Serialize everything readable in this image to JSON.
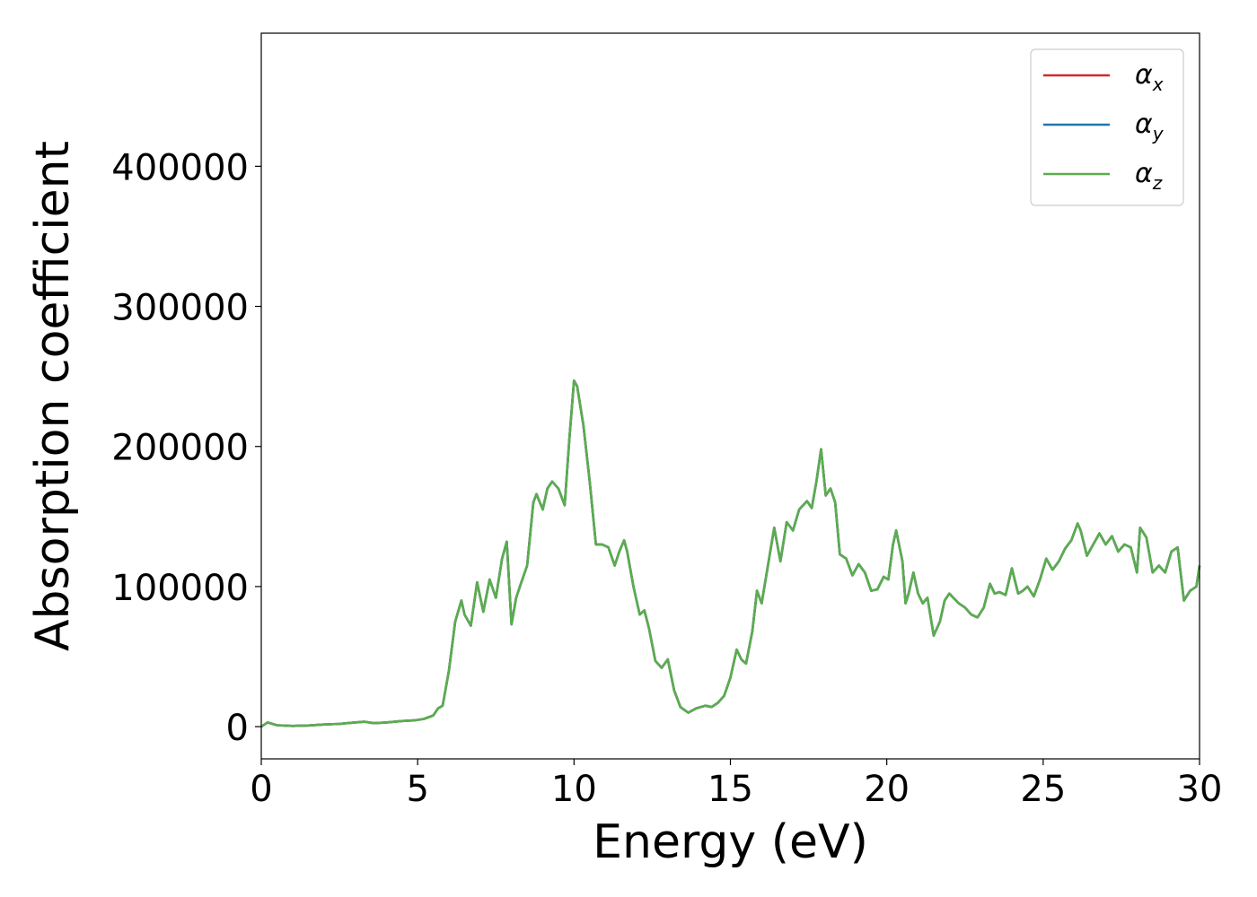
{
  "chart_data": {
    "type": "line",
    "title": "",
    "xlabel": "Energy (eV)",
    "ylabel": "Absorption coefficient",
    "xlim": [
      0,
      30
    ],
    "ylim": [
      -23000,
      495000
    ],
    "xticks": [
      0,
      5,
      10,
      15,
      20,
      25,
      30
    ],
    "xtick_labels": [
      "0",
      "5",
      "10",
      "15",
      "20",
      "25",
      "30"
    ],
    "yticks": [
      0,
      100000,
      200000,
      300000,
      400000
    ],
    "ytick_labels": [
      "0",
      "100000",
      "200000",
      "300000",
      "400000"
    ],
    "grid": false,
    "legend_position": "top-right",
    "x": [
      0,
      0.2,
      0.5,
      1,
      1.5,
      2,
      2.5,
      3,
      3.3,
      3.6,
      4,
      4.5,
      4.9,
      5.2,
      5.5,
      5.65,
      5.8,
      6.0,
      6.2,
      6.4,
      6.5,
      6.7,
      6.9,
      7.1,
      7.3,
      7.5,
      7.7,
      7.85,
      8.0,
      8.15,
      8.3,
      8.5,
      8.7,
      8.8,
      9.0,
      9.15,
      9.3,
      9.5,
      9.7,
      9.85,
      10.0,
      10.1,
      10.3,
      10.5,
      10.7,
      10.9,
      11.1,
      11.3,
      11.45,
      11.6,
      11.7,
      11.9,
      12.1,
      12.25,
      12.4,
      12.6,
      12.8,
      13.0,
      13.2,
      13.4,
      13.65,
      13.9,
      14.2,
      14.4,
      14.6,
      14.8,
      15.0,
      15.2,
      15.35,
      15.5,
      15.7,
      15.85,
      16.0,
      16.2,
      16.4,
      16.6,
      16.8,
      17.0,
      17.2,
      17.45,
      17.6,
      17.75,
      17.9,
      18.05,
      18.2,
      18.35,
      18.5,
      18.7,
      18.9,
      19.1,
      19.3,
      19.5,
      19.7,
      19.9,
      20.05,
      20.2,
      20.3,
      20.5,
      20.6,
      20.7,
      20.85,
      21.0,
      21.15,
      21.3,
      21.5,
      21.7,
      21.85,
      22.0,
      22.3,
      22.5,
      22.7,
      22.9,
      23.1,
      23.3,
      23.45,
      23.6,
      23.8,
      24.0,
      24.2,
      24.35,
      24.5,
      24.7,
      24.9,
      25.1,
      25.3,
      25.5,
      25.7,
      25.9,
      26.1,
      26.2,
      26.4,
      26.6,
      26.8,
      27.0,
      27.2,
      27.4,
      27.6,
      27.8,
      28.0,
      28.1,
      28.3,
      28.5,
      28.7,
      28.9,
      29.1,
      29.3,
      29.5,
      29.7,
      29.9,
      30.0
    ],
    "series": [
      {
        "name": "α_x",
        "color": "#d62728",
        "values": [
          0,
          3000,
          1000,
          500,
          800,
          1500,
          2000,
          3000,
          3500,
          2500,
          3000,
          4000,
          4500,
          5500,
          8000,
          13000,
          15000,
          40000,
          75000,
          90000,
          80000,
          72000,
          103000,
          82000,
          105000,
          92000,
          120000,
          132000,
          73000,
          92000,
          102000,
          115000,
          160000,
          166000,
          155000,
          170000,
          175000,
          170000,
          158000,
          205000,
          247000,
          243000,
          215000,
          175000,
          130000,
          130000,
          128000,
          115000,
          125000,
          133000,
          125000,
          100000,
          80000,
          83000,
          70000,
          47000,
          42000,
          48000,
          26000,
          14000,
          10000,
          13000,
          15000,
          14000,
          17000,
          22000,
          35000,
          55000,
          48000,
          45000,
          68000,
          97000,
          88000,
          115000,
          142000,
          118000,
          146000,
          140000,
          155000,
          161000,
          156000,
          175000,
          198000,
          165000,
          170000,
          160000,
          123000,
          120000,
          108000,
          116000,
          110000,
          97000,
          98000,
          107000,
          105000,
          130000,
          140000,
          118000,
          88000,
          95000,
          110000,
          95000,
          88000,
          92000,
          65000,
          75000,
          90000,
          95000,
          88000,
          85000,
          80000,
          78000,
          85000,
          102000,
          95000,
          96000,
          94000,
          113000,
          95000,
          97000,
          100000,
          93000,
          105000,
          120000,
          112000,
          118000,
          127000,
          133000,
          145000,
          140000,
          122000,
          130000,
          138000,
          130000,
          136000,
          125000,
          130000,
          128000,
          110000,
          142000,
          135000,
          110000,
          115000,
          110000,
          125000,
          128000,
          90000,
          97000,
          100000,
          115000
        ]
      },
      {
        "name": "α_y",
        "color": "#1f77b4",
        "values": [
          0,
          3000,
          1000,
          500,
          800,
          1500,
          2000,
          3000,
          3500,
          2500,
          3000,
          4000,
          4500,
          5500,
          8000,
          13000,
          15000,
          40000,
          75000,
          90000,
          80000,
          72000,
          103000,
          82000,
          105000,
          92000,
          120000,
          132000,
          73000,
          92000,
          102000,
          115000,
          160000,
          166000,
          155000,
          170000,
          175000,
          170000,
          158000,
          205000,
          247000,
          243000,
          215000,
          175000,
          130000,
          130000,
          128000,
          115000,
          125000,
          133000,
          125000,
          100000,
          80000,
          83000,
          70000,
          47000,
          42000,
          48000,
          26000,
          14000,
          10000,
          13000,
          15000,
          14000,
          17000,
          22000,
          35000,
          55000,
          48000,
          45000,
          68000,
          97000,
          88000,
          115000,
          142000,
          118000,
          146000,
          140000,
          155000,
          161000,
          156000,
          175000,
          198000,
          165000,
          170000,
          160000,
          123000,
          120000,
          108000,
          116000,
          110000,
          97000,
          98000,
          107000,
          105000,
          130000,
          140000,
          118000,
          88000,
          95000,
          110000,
          95000,
          88000,
          92000,
          65000,
          75000,
          90000,
          95000,
          88000,
          85000,
          80000,
          78000,
          85000,
          102000,
          95000,
          96000,
          94000,
          113000,
          95000,
          97000,
          100000,
          93000,
          105000,
          120000,
          112000,
          118000,
          127000,
          133000,
          145000,
          140000,
          122000,
          130000,
          138000,
          130000,
          136000,
          125000,
          130000,
          128000,
          110000,
          142000,
          135000,
          110000,
          115000,
          110000,
          125000,
          128000,
          90000,
          97000,
          100000,
          115000
        ]
      },
      {
        "name": "α_z",
        "color": "#5aad4e",
        "values": [
          0,
          3000,
          1000,
          500,
          800,
          1500,
          2000,
          3000,
          3500,
          2500,
          3000,
          4000,
          4500,
          5500,
          8000,
          13000,
          15000,
          40000,
          75000,
          90000,
          80000,
          72000,
          103000,
          82000,
          105000,
          92000,
          120000,
          132000,
          73000,
          92000,
          102000,
          115000,
          160000,
          166000,
          155000,
          170000,
          175000,
          170000,
          158000,
          205000,
          247000,
          243000,
          215000,
          175000,
          130000,
          130000,
          128000,
          115000,
          125000,
          133000,
          125000,
          100000,
          80000,
          83000,
          70000,
          47000,
          42000,
          48000,
          26000,
          14000,
          10000,
          13000,
          15000,
          14000,
          17000,
          22000,
          35000,
          55000,
          48000,
          45000,
          68000,
          97000,
          88000,
          115000,
          142000,
          118000,
          146000,
          140000,
          155000,
          161000,
          156000,
          175000,
          198000,
          165000,
          170000,
          160000,
          123000,
          120000,
          108000,
          116000,
          110000,
          97000,
          98000,
          107000,
          105000,
          130000,
          140000,
          118000,
          88000,
          95000,
          110000,
          95000,
          88000,
          92000,
          65000,
          75000,
          90000,
          95000,
          88000,
          85000,
          80000,
          78000,
          85000,
          102000,
          95000,
          96000,
          94000,
          113000,
          95000,
          97000,
          100000,
          93000,
          105000,
          120000,
          112000,
          118000,
          127000,
          133000,
          145000,
          140000,
          122000,
          130000,
          138000,
          130000,
          136000,
          125000,
          130000,
          128000,
          110000,
          142000,
          135000,
          110000,
          115000,
          110000,
          125000,
          128000,
          90000,
          97000,
          100000,
          115000
        ]
      }
    ],
    "legend": [
      {
        "symbol": "α",
        "sub": "x",
        "color": "#d62728"
      },
      {
        "symbol": "α",
        "sub": "y",
        "color": "#1f77b4"
      },
      {
        "symbol": "α",
        "sub": "z",
        "color": "#5aad4e"
      }
    ]
  }
}
